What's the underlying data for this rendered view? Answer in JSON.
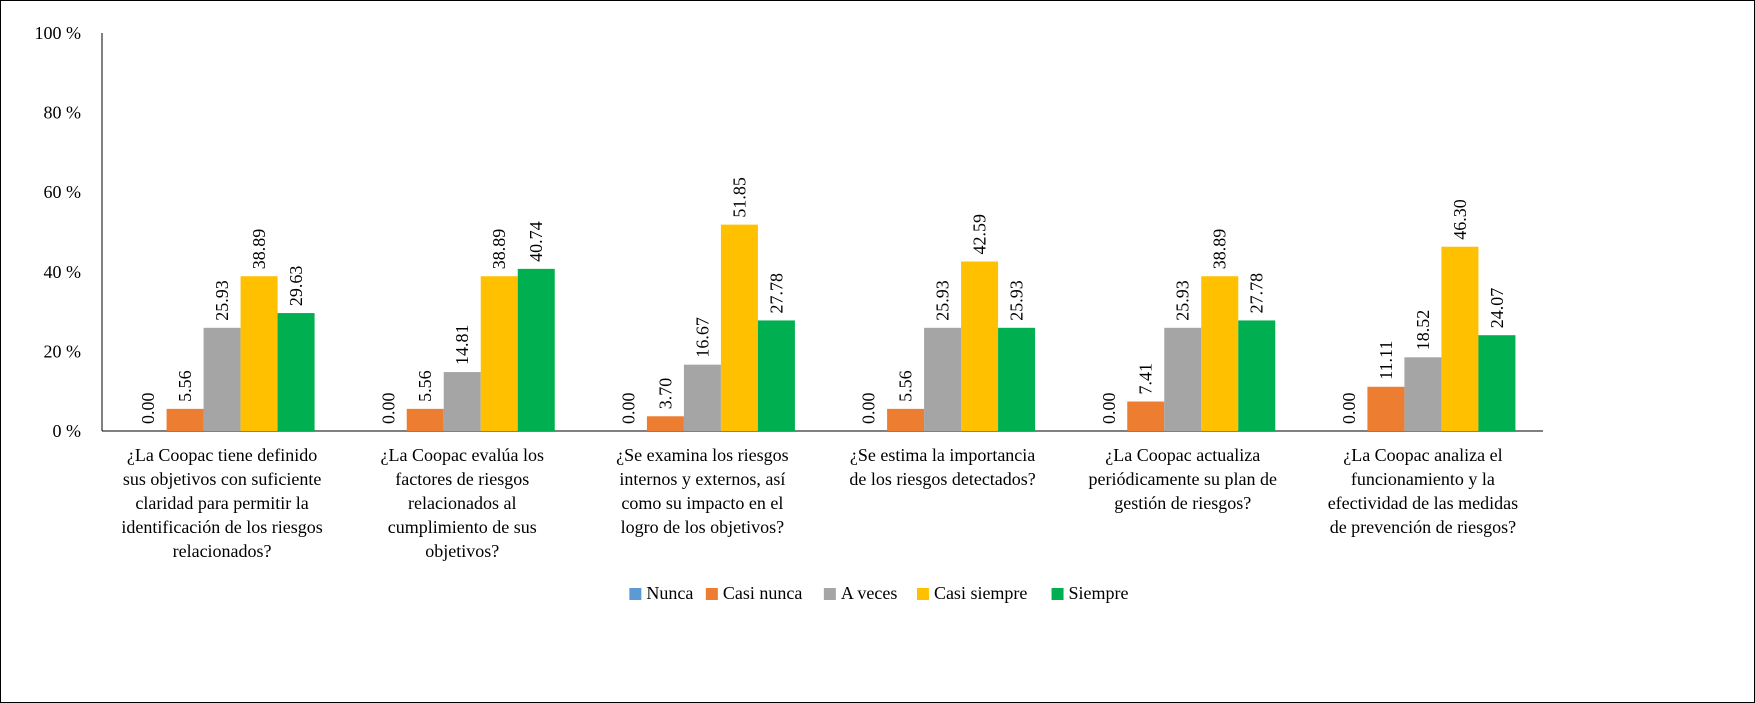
{
  "chart_data": {
    "type": "bar",
    "title": "",
    "xlabel": "",
    "ylabel": "",
    "ylim": [
      0,
      100
    ],
    "yticks": [
      {
        "value": 0,
        "label": "0 %"
      },
      {
        "value": 20,
        "label": "20 %"
      },
      {
        "value": 40,
        "label": "40 %"
      },
      {
        "value": 60,
        "label": "60 %"
      },
      {
        "value": 80,
        "label": "80 %"
      },
      {
        "value": 100,
        "label": "100 %"
      }
    ],
    "grid": false,
    "legend_position": "bottom",
    "categories": [
      [
        "¿La Coopac tiene definido",
        "sus objetivos con suficiente",
        "claridad para permitir la",
        "identificación de los riesgos",
        "relacionados?"
      ],
      [
        "¿La Coopac evalúa los",
        "factores de riesgos",
        "relacionados al",
        "cumplimiento de sus",
        "objetivos?"
      ],
      [
        "¿Se examina los riesgos",
        "internos y externos, así",
        "como su impacto en el",
        "logro de los objetivos?"
      ],
      [
        "¿Se estima la importancia",
        "de los riesgos detectados?"
      ],
      [
        "¿La Coopac actualiza",
        "periódicamente su plan de",
        "gestión de riesgos?"
      ],
      [
        "¿La Coopac analiza el",
        "funcionamiento y la",
        "efectividad de las medidas",
        "de prevención de riesgos?"
      ]
    ],
    "series": [
      {
        "name": "Nunca",
        "color": "#5B9BD5",
        "values": [
          0,
          0,
          0,
          0,
          0,
          0
        ],
        "labels": [
          "0.00",
          "0.00",
          "0.00",
          "0.00",
          "0.00",
          "0.00"
        ]
      },
      {
        "name": "Casi nunca",
        "color": "#ED7D31",
        "values": [
          5.56,
          5.56,
          3.7,
          5.56,
          7.41,
          11.11
        ],
        "labels": [
          "5.56",
          "5.56",
          "3.70",
          "5.56",
          "7.41",
          "11.11"
        ]
      },
      {
        "name": "A veces",
        "color": "#A5A5A5",
        "values": [
          25.93,
          14.81,
          16.67,
          25.93,
          25.93,
          18.52
        ],
        "labels": [
          "25.93",
          "14.81",
          "16.67",
          "25.93",
          "25.93",
          "18.52"
        ]
      },
      {
        "name": "Casi siempre",
        "color": "#FFC000",
        "values": [
          38.89,
          38.89,
          51.85,
          42.59,
          38.89,
          46.3
        ],
        "labels": [
          "38.89",
          "38.89",
          "51.85",
          "42.59",
          "38.89",
          "46.30"
        ]
      },
      {
        "name": "Siempre",
        "color": "#00B050",
        "values": [
          29.63,
          40.74,
          27.78,
          25.93,
          27.78,
          24.07
        ],
        "labels": [
          "29.63",
          "40.74",
          "27.78",
          "25.93",
          "27.78",
          "24.07"
        ]
      }
    ]
  }
}
